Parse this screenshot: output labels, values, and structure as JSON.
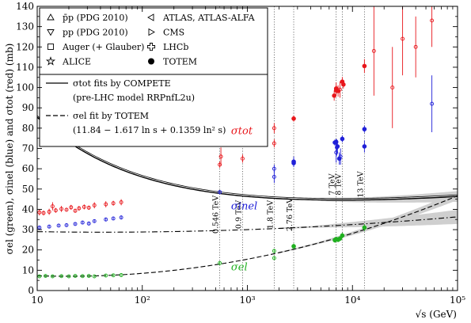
{
  "chart_data": {
    "type": "scatter",
    "x_scale": "log",
    "y_scale": "linear",
    "xlim": [
      10,
      100000
    ],
    "ylim": [
      0,
      140
    ],
    "x_ticks": [
      {
        "value": 10,
        "label": "10"
      },
      {
        "value": 100,
        "label": "10²"
      },
      {
        "value": 1000,
        "label": "10³"
      },
      {
        "value": 10000,
        "label": "10⁴"
      },
      {
        "value": 100000,
        "label": "10⁵"
      }
    ],
    "y_ticks": [
      0,
      10,
      20,
      30,
      40,
      50,
      60,
      70,
      80,
      90,
      100,
      110,
      120,
      130,
      140
    ],
    "xlabel": "√s  (GeV)",
    "ylabel": "σel (green), σinel (blue) and σtot (red)  (mb)",
    "legend": {
      "placement": "top-left",
      "markers": [
        {
          "symbol": "triangle-up",
          "label": "p̄p (PDG 2010)"
        },
        {
          "symbol": "triangle-down",
          "label": "pp (PDG 2010)"
        },
        {
          "symbol": "square",
          "label": "Auger (+ Glauber)"
        },
        {
          "symbol": "star",
          "label": "ALICE"
        },
        {
          "symbol": "triangle-left",
          "label": "ATLAS, ATLAS-ALFA"
        },
        {
          "symbol": "triangle-right",
          "label": "CMS"
        },
        {
          "symbol": "cross",
          "label": "LHCb"
        },
        {
          "symbol": "dot",
          "label": "TOTEM"
        }
      ],
      "lines": [
        {
          "style": "solid",
          "label": "σtot fits by COMPETE",
          "sublabel": "(pre-LHC model RRPnfL2u)"
        },
        {
          "style": "dashed",
          "label": "σel fit by TOTEM",
          "sublabel": "(11.84 − 1.617 ln s + 0.1359 ln² s)"
        }
      ]
    },
    "series_labels": [
      {
        "text": "σtot",
        "color": "#e8161b",
        "x": 700,
        "y": 77
      },
      {
        "text": "σinel",
        "color": "#2020d8",
        "x": 700,
        "y": 40
      },
      {
        "text": "σel",
        "color": "#20b020",
        "x": 700,
        "y": 10
      }
    ],
    "energy_lines": [
      {
        "value": 546,
        "label": "0.546 TeV"
      },
      {
        "value": 900,
        "label": "0.9 TeV"
      },
      {
        "value": 1800,
        "label": "1.8 TeV"
      },
      {
        "value": 2760,
        "label": "2.76 TeV"
      },
      {
        "value": 7000,
        "label": "7 TeV"
      },
      {
        "value": 8000,
        "label": "8 TeV"
      },
      {
        "value": 13000,
        "label": "13 TeV"
      }
    ],
    "series": [
      {
        "name": "σtot",
        "color": "#e8161b",
        "points": [
          {
            "x": 10.5,
            "y": 38.5,
            "err": 1.5
          },
          {
            "x": 11.5,
            "y": 38.2,
            "err": 1.2
          },
          {
            "x": 13,
            "y": 38.8,
            "err": 1.5
          },
          {
            "x": 14,
            "y": 41.5,
            "err": 2.0
          },
          {
            "x": 15,
            "y": 39.5,
            "err": 1.2
          },
          {
            "x": 17,
            "y": 40.2,
            "err": 1.5
          },
          {
            "x": 19,
            "y": 39.8,
            "err": 1.0
          },
          {
            "x": 21,
            "y": 41.0,
            "err": 1.2
          },
          {
            "x": 23,
            "y": 39.3,
            "err": 1.0
          },
          {
            "x": 25,
            "y": 40.5,
            "err": 1.2
          },
          {
            "x": 28,
            "y": 41.2,
            "err": 1.2
          },
          {
            "x": 31,
            "y": 40.8,
            "err": 1.0
          },
          {
            "x": 35,
            "y": 42.0,
            "err": 1.5
          },
          {
            "x": 45,
            "y": 42.5,
            "err": 1.5
          },
          {
            "x": 53,
            "y": 43.0,
            "err": 1.2
          },
          {
            "x": 63,
            "y": 43.5,
            "err": 1.5
          },
          {
            "x": 546,
            "y": 62.0,
            "err": 1.5
          },
          {
            "x": 560,
            "y": 66.0,
            "err": 4.5
          },
          {
            "x": 900,
            "y": 65.0,
            "err": 2.0
          },
          {
            "x": 1800,
            "y": 72.5,
            "err": 2.0
          },
          {
            "x": 1800,
            "y": 80.0,
            "err": 2.5
          },
          {
            "x": 2760,
            "y": 84.7,
            "err": 1.5
          },
          {
            "x": 6700,
            "y": 96.0,
            "err": 2.5
          },
          {
            "x": 7000,
            "y": 98.6,
            "err": 2.2
          },
          {
            "x": 7000,
            "y": 99.5,
            "err": 3.0
          },
          {
            "x": 7300,
            "y": 98.3,
            "err": 2.8
          },
          {
            "x": 7600,
            "y": 99.0,
            "err": 4.0
          },
          {
            "x": 8000,
            "y": 102.9,
            "err": 2.3
          },
          {
            "x": 8200,
            "y": 101.5,
            "err": 2.0
          },
          {
            "x": 13000,
            "y": 110.6,
            "err": 3.4
          },
          {
            "x": 16000,
            "y": 118.0,
            "err": 22.0
          },
          {
            "x": 24000,
            "y": 100.0,
            "err": 20.0
          },
          {
            "x": 30000,
            "y": 124.0,
            "err": 18.0
          },
          {
            "x": 40000,
            "y": 120.0,
            "err": 15.0
          },
          {
            "x": 57000,
            "y": 133.0,
            "err": 13.0
          }
        ]
      },
      {
        "name": "σinel",
        "color": "#2020d8",
        "points": [
          {
            "x": 10.5,
            "y": 31.0,
            "err": 0.8
          },
          {
            "x": 13,
            "y": 31.5,
            "err": 0.8
          },
          {
            "x": 16,
            "y": 32.0,
            "err": 0.8
          },
          {
            "x": 19,
            "y": 32.2,
            "err": 0.8
          },
          {
            "x": 23,
            "y": 32.8,
            "err": 0.8
          },
          {
            "x": 27,
            "y": 33.5,
            "err": 0.8
          },
          {
            "x": 31,
            "y": 33.0,
            "err": 0.8
          },
          {
            "x": 35,
            "y": 34.2,
            "err": 0.8
          },
          {
            "x": 45,
            "y": 35.0,
            "err": 0.8
          },
          {
            "x": 53,
            "y": 35.5,
            "err": 0.8
          },
          {
            "x": 63,
            "y": 36.0,
            "err": 1.0
          },
          {
            "x": 546,
            "y": 48.5,
            "err": 1.0
          },
          {
            "x": 1800,
            "y": 56.0,
            "err": 3.0
          },
          {
            "x": 1800,
            "y": 60.0,
            "err": 2.0
          },
          {
            "x": 2760,
            "y": 62.8,
            "err": 2.0
          },
          {
            "x": 2760,
            "y": 63.5,
            "err": 2.5
          },
          {
            "x": 6800,
            "y": 72.9,
            "err": 1.5
          },
          {
            "x": 7000,
            "y": 73.2,
            "err": 1.5
          },
          {
            "x": 7000,
            "y": 68.0,
            "err": 5.0
          },
          {
            "x": 7100,
            "y": 70.5,
            "err": 4.0
          },
          {
            "x": 7200,
            "y": 71.0,
            "err": 3.0
          },
          {
            "x": 7500,
            "y": 65.0,
            "err": 3.0
          },
          {
            "x": 7700,
            "y": 66.0,
            "err": 4.0
          },
          {
            "x": 8000,
            "y": 74.7,
            "err": 1.7
          },
          {
            "x": 13000,
            "y": 79.5,
            "err": 1.8
          },
          {
            "x": 13000,
            "y": 71.0,
            "err": 3.0
          },
          {
            "x": 57000,
            "y": 92.0,
            "err": 14.0
          }
        ]
      },
      {
        "name": "σel",
        "color": "#20b020",
        "points": [
          {
            "x": 10.5,
            "y": 7.0,
            "err": 0.5
          },
          {
            "x": 12,
            "y": 7.2,
            "err": 0.5
          },
          {
            "x": 14,
            "y": 7.0,
            "err": 0.5
          },
          {
            "x": 17,
            "y": 7.1,
            "err": 0.5
          },
          {
            "x": 20,
            "y": 7.0,
            "err": 0.5
          },
          {
            "x": 23,
            "y": 7.2,
            "err": 0.5
          },
          {
            "x": 27,
            "y": 7.1,
            "err": 0.5
          },
          {
            "x": 31,
            "y": 7.2,
            "err": 0.5
          },
          {
            "x": 35,
            "y": 7.0,
            "err": 0.5
          },
          {
            "x": 45,
            "y": 7.4,
            "err": 0.5
          },
          {
            "x": 53,
            "y": 7.5,
            "err": 0.5
          },
          {
            "x": 63,
            "y": 7.6,
            "err": 0.5
          },
          {
            "x": 546,
            "y": 13.5,
            "err": 0.6
          },
          {
            "x": 1800,
            "y": 16.0,
            "err": 1.0
          },
          {
            "x": 1800,
            "y": 19.5,
            "err": 1.0
          },
          {
            "x": 2760,
            "y": 21.8,
            "err": 1.4
          },
          {
            "x": 6800,
            "y": 24.8,
            "err": 1.2
          },
          {
            "x": 7000,
            "y": 25.4,
            "err": 1.1
          },
          {
            "x": 7300,
            "y": 25.0,
            "err": 1.0
          },
          {
            "x": 7600,
            "y": 25.6,
            "err": 1.0
          },
          {
            "x": 8000,
            "y": 27.1,
            "err": 1.4
          },
          {
            "x": 13000,
            "y": 31.0,
            "err": 1.7
          }
        ]
      }
    ]
  }
}
